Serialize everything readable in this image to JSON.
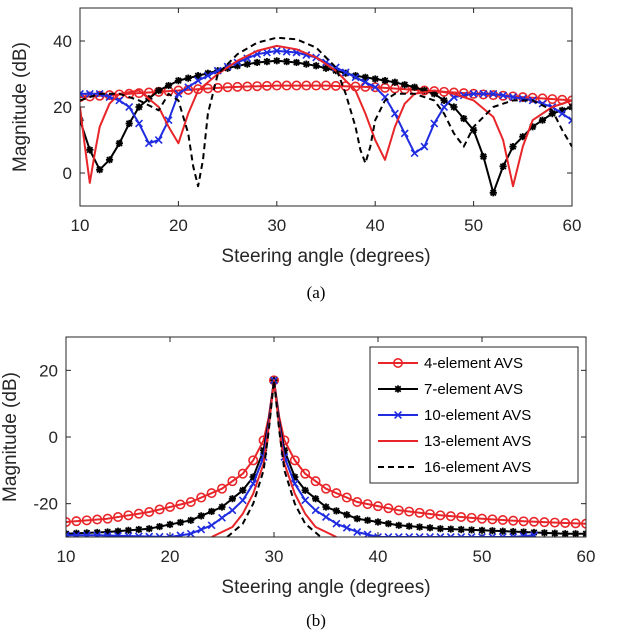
{
  "chart_data": [
    {
      "type": "line",
      "caption": "(a)",
      "xlabel": "Steering angle (degrees)",
      "ylabel": "Magnitude (dB)",
      "xlim": [
        10,
        60
      ],
      "ylim": [
        -10,
        50
      ],
      "xticks": [
        10,
        20,
        30,
        40,
        50,
        60
      ],
      "yticks": [
        0,
        20,
        40
      ],
      "grid": false,
      "series": [
        {
          "name": "4-element AVS",
          "color": "#e8262a",
          "marker": "circle",
          "dash": "",
          "x": [
            10,
            15,
            20,
            25,
            30,
            35,
            40,
            45,
            50,
            55,
            60
          ],
          "y": [
            23,
            24,
            25,
            26,
            26.5,
            26.5,
            26,
            25,
            24,
            23,
            22
          ]
        },
        {
          "name": "7-element AVS",
          "color": "#000000",
          "marker": "star",
          "dash": "",
          "x": [
            10,
            11,
            12,
            13,
            14,
            15,
            16,
            18,
            20,
            22,
            24,
            26,
            28,
            30,
            32,
            34,
            36,
            38,
            40,
            42,
            44,
            46,
            48,
            50,
            51,
            52,
            53,
            54,
            56,
            58,
            60
          ],
          "y": [
            16,
            7,
            1,
            4,
            9,
            15,
            20,
            25,
            28,
            29.5,
            31,
            32.5,
            33.5,
            34,
            33.5,
            32.5,
            31,
            29.5,
            28.5,
            27.5,
            26,
            24,
            20,
            13,
            5,
            -6,
            2,
            8,
            14,
            18,
            20
          ]
        },
        {
          "name": "10-element AVS",
          "color": "#1f2ce0",
          "marker": "x",
          "dash": "",
          "x": [
            10,
            12,
            14,
            15,
            16,
            17,
            18,
            19,
            20,
            22,
            24,
            26,
            28,
            30,
            32,
            34,
            36,
            38,
            40,
            41,
            42,
            43,
            44,
            45,
            46,
            47,
            48,
            50,
            52,
            54,
            56,
            58,
            60
          ],
          "y": [
            24,
            24,
            22,
            20,
            15,
            9,
            10,
            16,
            24,
            28,
            31,
            33.5,
            36,
            37,
            36.5,
            35,
            32,
            29,
            26,
            23,
            18,
            12,
            6,
            8,
            15,
            20,
            23,
            24,
            24,
            23,
            22,
            20,
            16
          ]
        },
        {
          "name": "13-element AVS",
          "color": "#e8262a",
          "marker": "none",
          "dash": "",
          "x": [
            10,
            10.5,
            11,
            11.5,
            12,
            13,
            14,
            16,
            18,
            19,
            20,
            21,
            22,
            24,
            26,
            28,
            30,
            32,
            34,
            36,
            38,
            39,
            40,
            41,
            42,
            43,
            44,
            46,
            48,
            50,
            52,
            53,
            54,
            55,
            56,
            58,
            60
          ],
          "y": [
            20,
            8,
            -3,
            6,
            14,
            21,
            24,
            25,
            20,
            14,
            9,
            18,
            25,
            30,
            34,
            37,
            38.5,
            37.5,
            35,
            31,
            25,
            18,
            10,
            4,
            14,
            21,
            24,
            25,
            24,
            22,
            17,
            10,
            -4,
            8,
            16,
            20,
            22
          ]
        },
        {
          "name": "16-element AVS",
          "color": "#000000",
          "marker": "none",
          "dash": "6,4",
          "x": [
            10,
            12,
            14,
            16,
            18,
            19,
            20,
            21,
            21.5,
            22,
            22.5,
            23,
            24,
            26,
            28,
            30,
            32,
            34,
            36,
            37,
            38,
            38.5,
            39,
            39.5,
            40,
            41,
            42,
            44,
            46,
            47,
            48,
            49,
            50,
            52,
            54,
            56,
            58,
            59,
            60
          ],
          "y": [
            22,
            24,
            24,
            22,
            19,
            24,
            22,
            12,
            2,
            -4,
            4,
            18,
            30,
            36,
            39.5,
            41,
            40.5,
            38,
            32,
            24,
            14,
            7,
            3,
            8,
            16,
            22,
            24,
            24,
            22,
            18,
            12,
            8,
            14,
            20,
            22,
            22,
            19,
            13,
            8
          ]
        }
      ]
    },
    {
      "type": "line",
      "caption": "(b)",
      "xlabel": "Steering angle (degrees)",
      "ylabel": "Magnitude (dB)",
      "xlim": [
        10,
        60
      ],
      "ylim": [
        -30,
        30
      ],
      "xticks": [
        10,
        20,
        30,
        40,
        50,
        60
      ],
      "yticks": [
        -20,
        0,
        20
      ],
      "grid": false,
      "legend_position": "top-right",
      "series": [
        {
          "name": "4-element AVS",
          "color": "#e8262a",
          "marker": "circle",
          "dash": "",
          "x": [
            10,
            14,
            18,
            22,
            25,
            27,
            28,
            29,
            29.5,
            30,
            30.5,
            31,
            32,
            33,
            35,
            38,
            42,
            46,
            50,
            54,
            58,
            60
          ],
          "y": [
            -25.5,
            -24.5,
            -22.5,
            -19.5,
            -15.5,
            -11,
            -7,
            -1,
            6,
            17,
            6,
            -1,
            -7,
            -11,
            -15.5,
            -19.5,
            -22,
            -23.5,
            -24.5,
            -25.3,
            -25.8,
            -26
          ]
        },
        {
          "name": "7-element AVS",
          "color": "#000000",
          "marker": "star",
          "dash": "",
          "x": [
            10,
            14,
            18,
            22,
            25,
            27,
            28,
            29,
            29.5,
            30,
            30.5,
            31,
            32,
            33,
            35,
            38,
            42,
            46,
            50,
            54,
            58,
            60
          ],
          "y": [
            -29,
            -28.5,
            -27.5,
            -25,
            -21,
            -16,
            -12,
            -4,
            5,
            17,
            5,
            -4,
            -12,
            -16,
            -21,
            -24.5,
            -26.5,
            -27.5,
            -28,
            -28.5,
            -29,
            -29
          ]
        },
        {
          "name": "10-element AVS",
          "color": "#1f2ce0",
          "marker": "x",
          "dash": "",
          "x": [
            10,
            13,
            20,
            22,
            24,
            26,
            27,
            28,
            29,
            29.5,
            30,
            30.5,
            31,
            32,
            33,
            34,
            36,
            38,
            40,
            53,
            55
          ],
          "y": [
            -29.5,
            -29.5,
            -30,
            -29,
            -26.5,
            -22,
            -19,
            -14,
            -6,
            4,
            17,
            4,
            -6,
            -14,
            -19,
            -22,
            -26,
            -28.5,
            -30,
            -30,
            -29.5
          ]
        },
        {
          "name": "13-element AVS",
          "color": "#e8262a",
          "marker": "none",
          "dash": "",
          "x": [
            24,
            26,
            27,
            28,
            29,
            29.5,
            30,
            30.5,
            31,
            32,
            33,
            34,
            36
          ],
          "y": [
            -30,
            -27,
            -23,
            -17,
            -8,
            3,
            17,
            3,
            -8,
            -17,
            -23,
            -27,
            -30
          ]
        },
        {
          "name": "16-element AVS",
          "color": "#000000",
          "marker": "none",
          "dash": "6,4",
          "x": [
            25.5,
            27,
            28,
            29,
            29.5,
            30,
            30.5,
            31,
            32,
            33,
            34.5
          ],
          "y": [
            -30,
            -26,
            -20,
            -10,
            2,
            17,
            2,
            -10,
            -20,
            -26,
            -30
          ]
        }
      ]
    }
  ]
}
